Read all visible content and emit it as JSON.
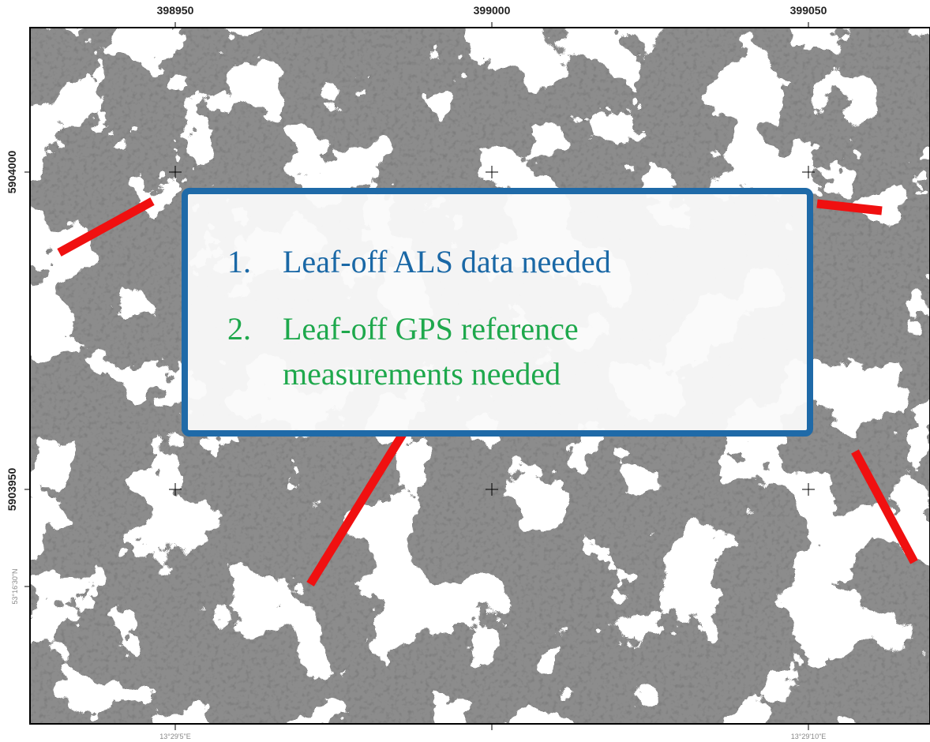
{
  "map": {
    "top_labels": [
      "398950",
      "399000",
      "399050"
    ],
    "left_labels": [
      "5904000",
      "5903950",
      "53°16'30\"N"
    ],
    "bottom_labels": [
      "13°29'5\"E",
      "13°29'10\"E"
    ],
    "notes": [
      {
        "number": "1.",
        "lines": [
          "Leaf-off ALS data needed"
        ]
      },
      {
        "number": "2.",
        "lines": [
          "Leaf-off GPS reference",
          "measurements needed"
        ]
      }
    ]
  }
}
